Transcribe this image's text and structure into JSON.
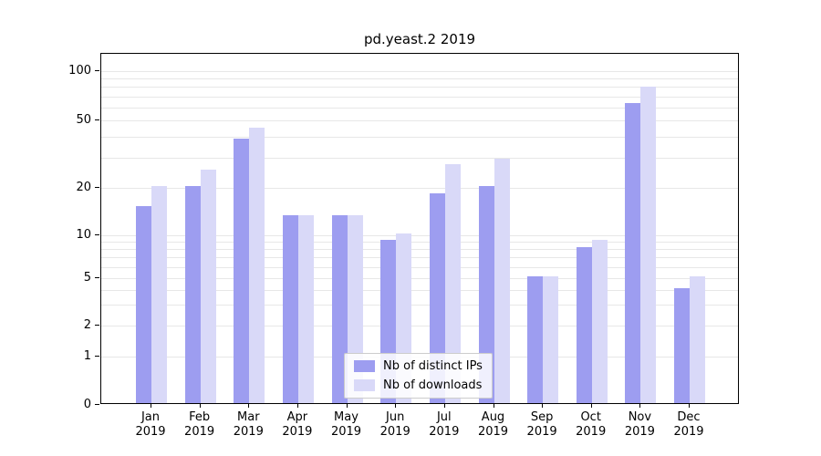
{
  "chart_data": {
    "type": "bar",
    "title": "pd.yeast.2 2019",
    "categories": [
      "Jan 2019",
      "Feb 2019",
      "Mar 2019",
      "Apr 2019",
      "May 2019",
      "Jun 2019",
      "Jul 2019",
      "Aug 2019",
      "Sep 2019",
      "Oct 2019",
      "Nov 2019",
      "Dec 2019"
    ],
    "series": [
      {
        "name": "Nb of distinct IPs",
        "color": "#9d9df0",
        "values": [
          15,
          20,
          38,
          13,
          13,
          9,
          18,
          20,
          5,
          8,
          62,
          4
        ]
      },
      {
        "name": "Nb of downloads",
        "color": "#d9d9f8",
        "values": [
          20,
          25,
          44,
          13,
          13,
          10,
          27,
          29,
          5,
          9,
          78,
          5
        ]
      }
    ],
    "yticks": [
      100,
      50,
      20,
      10,
      5,
      2,
      1,
      0
    ],
    "yscale": "symlog",
    "ylim": [
      0,
      130
    ],
    "grid": true,
    "legend_position": "lower center inside"
  }
}
